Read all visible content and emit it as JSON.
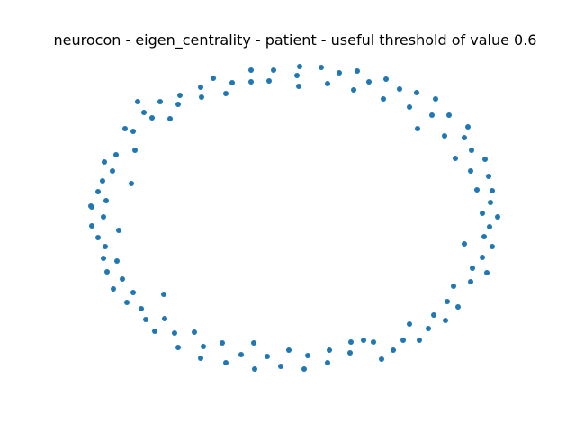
{
  "title": "neurocon - eigen_centrality - patient - useful threshold of value 0.6",
  "node_color": "#1f77b4",
  "chart_data": {
    "type": "scatter",
    "title": "neurocon - eigen_centrality - patient - useful threshold of value 0.6",
    "axes_visible": false,
    "grid": false,
    "marker": "circle",
    "x": [
      333,
      357,
      377,
      397,
      410,
      429,
      444,
      463,
      484,
      426,
      364,
      393,
      455,
      480,
      499,
      464,
      520,
      494,
      516,
      506,
      524,
      539,
      543,
      523,
      530,
      547,
      545,
      536,
      553,
      544,
      516,
      538,
      547,
      536,
      525,
      541,
      504,
      523,
      497,
      509,
      482,
      495,
      455,
      476,
      466,
      448,
      437,
      424,
      415,
      404,
      390,
      389,
      366,
      364,
      342,
      321,
      338,
      312,
      297,
      283,
      268,
      282,
      251,
      247,
      226,
      223,
      198,
      194,
      216,
      172,
      183,
      162,
      157,
      141,
      148,
      182,
      126,
      136,
      119,
      130,
      115,
      117,
      109,
      102,
      102,
      132,
      115,
      118,
      109,
      101,
      146,
      125,
      114,
      116,
      150,
      129,
      148,
      139,
      160,
      169,
      189,
      153,
      178,
      200,
      198,
      224,
      251,
      223,
      237,
      258,
      279,
      299,
      304,
      279,
      330,
      332
    ],
    "y": [
      74,
      75,
      81,
      79,
      91,
      88,
      99,
      103,
      110,
      110,
      93,
      100,
      119,
      128,
      128,
      143,
      141,
      151,
      153,
      176,
      167,
      177,
      196,
      190,
      211,
      212,
      225,
      237,
      241,
      252,
      271,
      263,
      274,
      286,
      298,
      303,
      318,
      313,
      335,
      341,
      350,
      356,
      360,
      365,
      378,
      378,
      389,
      399,
      380,
      378,
      380,
      392,
      389,
      403,
      395,
      389,
      410,
      407,
      396,
      410,
      394,
      381,
      403,
      381,
      385,
      398,
      386,
      370,
      369,
      368,
      354,
      355,
      343,
      336,
      325,
      327,
      321,
      310,
      302,
      290,
      287,
      274,
      264,
      251,
      230,
      256,
      241,
      223,
      213,
      229,
      204,
      190,
      201,
      180,
      167,
      172,
      146,
      143,
      125,
      131,
      132,
      113,
      113,
      106,
      116,
      108,
      104,
      97,
      87,
      92,
      91,
      90,
      78,
      78,
      84,
      96
    ]
  }
}
